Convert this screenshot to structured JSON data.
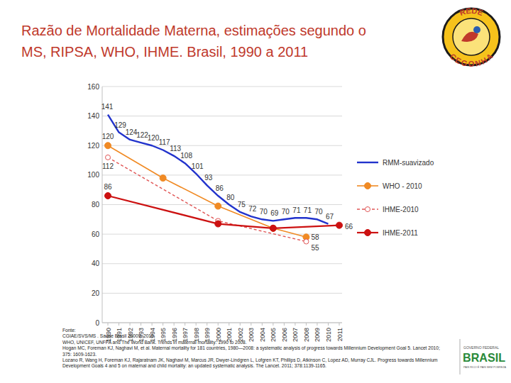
{
  "header": {
    "title": [
      "Razão de Mortalidade Materna, estimações segundo o",
      "MS, RIPSA, WHO, IHME. Brasil, 1990 a 2011"
    ]
  },
  "chart_data": {
    "type": "line",
    "xlim": [
      1990,
      2011
    ],
    "xticks": [
      1990,
      1991,
      1992,
      1993,
      1994,
      1995,
      1996,
      1997,
      1998,
      1999,
      2000,
      2001,
      2002,
      2003,
      2004,
      2005,
      2006,
      2007,
      2008,
      2009,
      2010,
      2011
    ],
    "ylim": [
      0,
      160
    ],
    "yticks": [
      0,
      20,
      40,
      60,
      80,
      100,
      120,
      140,
      160
    ],
    "grid": true,
    "legend": "right",
    "data_labels": true,
    "series": [
      {
        "name": "RMM-suavizado",
        "color": "#2233cc",
        "marker": "none",
        "line_style": "solid",
        "x": [
          1990,
          1991,
          1992,
          1993,
          1994,
          1995,
          1996,
          1997,
          1998,
          1999,
          2000,
          2001,
          2002,
          2003,
          2004,
          2005,
          2006,
          2007,
          2008,
          2009,
          2010
        ],
        "values": [
          141,
          129,
          124,
          122,
          120,
          117,
          113,
          108,
          101,
          93,
          86,
          80,
          75,
          72,
          70,
          69,
          70,
          71,
          71,
          70,
          67
        ],
        "value_labels": [
          "141",
          "129",
          "124",
          "122",
          "120",
          "117",
          "113",
          "108",
          "101",
          "93",
          "86",
          "80",
          "75",
          "72",
          "70",
          "69",
          "70",
          "71",
          "71",
          "70",
          "67"
        ]
      },
      {
        "name": "WHO - 2010",
        "color": "#f08a24",
        "marker": "circle",
        "line_style": "solid",
        "x": [
          1990,
          1995,
          2000,
          2005,
          2008
        ],
        "values": [
          120,
          98,
          79,
          64,
          58
        ],
        "value_labels": [
          "120",
          null,
          null,
          null,
          "58"
        ]
      },
      {
        "name": "IHME-2010",
        "color": "#e05555",
        "marker": "circle-open",
        "line_style": "dashed",
        "x": [
          1990,
          2000,
          2008
        ],
        "values": [
          112,
          69,
          55
        ],
        "value_labels": [
          "112",
          null,
          "55"
        ]
      },
      {
        "name": "IHME-2011",
        "color": "#cc1111",
        "marker": "circle",
        "line_style": "solid",
        "x": [
          1990,
          2000,
          2005,
          2011
        ],
        "values": [
          86,
          67,
          64,
          66
        ],
        "value_labels": [
          "86",
          null,
          null,
          "66"
        ]
      }
    ]
  },
  "sources": [
    "Fonte:",
    "CGIAE/SVS/MS . Saúde Brasil 20009. 2010",
    "WHO, UNICEF, UNFPA and The World Bank. Trends in maternal mortality: 1990 to 2008.",
    "Hogan MC, Foreman KJ, Naghavi M, et al. Maternal mortality for 181 countries, 1980—2008: a systematic analysis of progress towards Millennium Development Goal 5. Lancet 2010; 375: 1609-1623.",
    "Lozano R, Wang H, Foreman KJ, Rajaratnam JK, Naghavi M, Marcus JR, Dwyer-Lindgren L, Lofgren KT, Phillips D, Atkinson C, Lopez AD, Murray CJL. Progress towards Millennium Development Goals 4 and 5 on maternal and child mortality: an updated systematic analysis. The Lancet. 2011; 378:1139-1165."
  ],
  "logos": {
    "rede_cegonha": [
      "REDE",
      "CEGONHA"
    ],
    "brasil": {
      "top": "GOVERNO FEDERAL",
      "text": "BRASIL",
      "bottom": "PAÍS RICO É PAÍS SEM POBREZA"
    }
  }
}
